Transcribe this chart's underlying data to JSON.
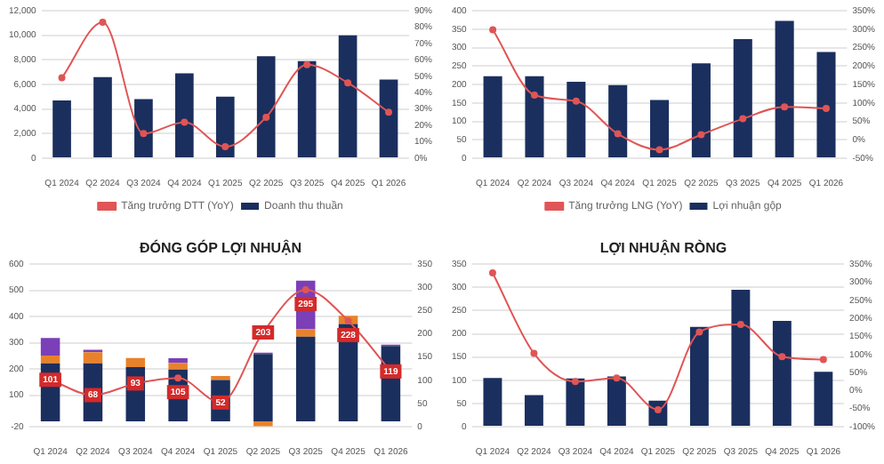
{
  "chart_data": [
    {
      "type": "bar",
      "categories": [
        "Q1 2024",
        "Q2 2024",
        "Q3 2024",
        "Q4 2024",
        "Q1 2025",
        "Q2 2025",
        "Q3 2025",
        "Q4 2025",
        "Q1 2026"
      ],
      "series": [
        {
          "name": "Doanh thu thuần",
          "color": "#1b2f5e",
          "values": [
            4700,
            6600,
            4800,
            6900,
            5000,
            8300,
            7900,
            10000,
            6400
          ]
        },
        {
          "name": "Tăng trưởng DTT (YoY)",
          "type": "line",
          "axis": "y2",
          "color": "#e05555",
          "values": [
            49,
            83,
            15,
            22,
            7,
            25,
            57,
            46,
            28
          ]
        }
      ],
      "ylim": [
        0,
        12000
      ],
      "yticks": [
        {
          "value": 0,
          "label": "0"
        },
        {
          "value": 2000,
          "label": "2,000"
        },
        {
          "value": 4000,
          "label": "4,000"
        },
        {
          "value": 6000,
          "label": "6,000"
        },
        {
          "value": 8000,
          "label": "8,000"
        },
        {
          "value": 10000,
          "label": "10,000"
        },
        {
          "value": 12000,
          "label": "12,000"
        }
      ],
      "y2lim": [
        0,
        90
      ],
      "y2ticks": [
        {
          "value": 0,
          "label": "0%"
        },
        {
          "value": 10,
          "label": "10%"
        },
        {
          "value": 20,
          "label": "20%"
        },
        {
          "value": 30,
          "label": "30%"
        },
        {
          "value": 40,
          "label": "40%"
        },
        {
          "value": 50,
          "label": "50%"
        },
        {
          "value": 60,
          "label": "60%"
        },
        {
          "value": 70,
          "label": "70%"
        },
        {
          "value": 80,
          "label": "80%"
        },
        {
          "value": 90,
          "label": "90%"
        }
      ],
      "grid": "y",
      "legend": "bottom",
      "marker": "circle"
    },
    {
      "type": "bar",
      "categories": [
        "Q1 2024",
        "Q2 2024",
        "Q3 2024",
        "Q4 2024",
        "Q1 2025",
        "Q2 2025",
        "Q3 2025",
        "Q4 2025",
        "Q1 2026"
      ],
      "series": [
        {
          "name": "Lợi nhuận gộp",
          "color": "#1b2f5e",
          "values": [
            222,
            222,
            207,
            198,
            158,
            257,
            323,
            372,
            288
          ]
        },
        {
          "name": "Tăng trưởng LNG (YoY)",
          "type": "line",
          "axis": "y2",
          "color": "#e05555",
          "values": [
            298,
            121,
            105,
            16,
            -27,
            14,
            57,
            89,
            85
          ]
        }
      ],
      "ylim": [
        0,
        400
      ],
      "yticks": [
        0,
        50,
        100,
        150,
        200,
        250,
        300,
        350,
        400
      ],
      "y2lim": [
        -50,
        350
      ],
      "y2ticks": [
        {
          "value": -50,
          "label": "-50%"
        },
        {
          "value": 0,
          "label": "0%"
        },
        {
          "value": 50,
          "label": "50%"
        },
        {
          "value": 100,
          "label": "100%"
        },
        {
          "value": 150,
          "label": "150%"
        },
        {
          "value": 200,
          "label": "200%"
        },
        {
          "value": 250,
          "label": "250%"
        },
        {
          "value": 300,
          "label": "300%"
        },
        {
          "value": 350,
          "label": "350%"
        }
      ],
      "grid": "y",
      "legend": "bottom",
      "marker": "circle"
    },
    {
      "type": "bar",
      "title": "ĐÓNG GÓP LỢI NHUẬN",
      "stacked": true,
      "categories": [
        "Q1 2024",
        "Q2 2024",
        "Q3 2024",
        "Q4 2024",
        "Q1 2025",
        "Q2 2025",
        "Q3 2025",
        "Q4 2025",
        "Q1 2026"
      ],
      "series": [
        {
          "color": "#1b2f5e",
          "values": [
            222,
            222,
            207,
            198,
            158,
            257,
            323,
            372,
            288
          ]
        },
        {
          "color": "#e8822a",
          "values": [
            29,
            42,
            35,
            25,
            15,
            -18,
            29,
            31,
            null
          ]
        },
        {
          "color": "#7b3fb8",
          "values": [
            67,
            9,
            null,
            18,
            null,
            5,
            185,
            null,
            5
          ]
        },
        {
          "type": "line",
          "axis": "y2",
          "color": "#e05555",
          "values": [
            101,
            68,
            93,
            105,
            52,
            203,
            295,
            228,
            119
          ],
          "value_labels": [
            "101",
            "68",
            "93",
            "105",
            "52",
            "203",
            "295",
            "228",
            "119"
          ]
        }
      ],
      "ylim": [
        -20,
        600
      ],
      "yticks": [
        -20,
        100,
        200,
        300,
        400,
        500,
        600
      ],
      "y2lim": [
        0,
        350
      ],
      "y2ticks": [
        0,
        50,
        100,
        150,
        200,
        250,
        300,
        350
      ],
      "grid": "y",
      "marker": "circle"
    },
    {
      "type": "bar",
      "title": "LỢI NHUẬN RÒNG",
      "categories": [
        "Q1 2024",
        "Q2 2024",
        "Q3 2024",
        "Q4 2024",
        "Q1 2025",
        "Q2 2025",
        "Q3 2025",
        "Q4 2025",
        "Q1 2026"
      ],
      "series": [
        {
          "color": "#1b2f5e",
          "values": [
            105,
            68,
            104,
            108,
            56,
            215,
            295,
            228,
            118
          ]
        },
        {
          "type": "line",
          "axis": "y2",
          "color": "#e05555",
          "values": [
            326,
            103,
            25,
            35,
            -53,
            162,
            183,
            94,
            86
          ]
        }
      ],
      "ylim": [
        0,
        350
      ],
      "yticks": [
        0,
        50,
        100,
        150,
        200,
        250,
        300,
        350
      ],
      "y2lim": [
        -100,
        350
      ],
      "y2ticks": [
        {
          "value": -100,
          "label": "-100%"
        },
        {
          "value": -50,
          "label": "-50%"
        },
        {
          "value": 0,
          "label": "0%"
        },
        {
          "value": 50,
          "label": "50%"
        },
        {
          "value": 100,
          "label": "100%"
        },
        {
          "value": 150,
          "label": "150%"
        },
        {
          "value": 200,
          "label": "200%"
        },
        {
          "value": 250,
          "label": "250%"
        },
        {
          "value": 300,
          "label": "300%"
        },
        {
          "value": 350,
          "label": "350%"
        }
      ],
      "grid": "y",
      "marker": "circle"
    }
  ]
}
